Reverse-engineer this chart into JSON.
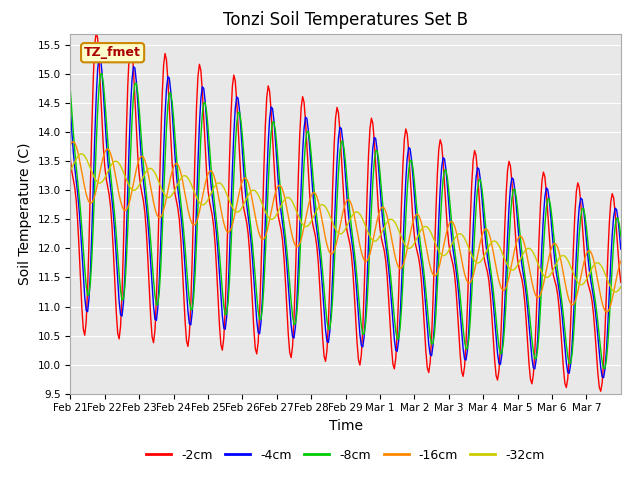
{
  "title": "Tonzi Soil Temperatures Set B",
  "xlabel": "Time",
  "ylabel": "Soil Temperature (C)",
  "ylim": [
    9.5,
    15.7
  ],
  "xlim": [
    0,
    384
  ],
  "yticks": [
    9.5,
    10.0,
    10.5,
    11.0,
    11.5,
    12.0,
    12.5,
    13.0,
    13.5,
    14.0,
    14.5,
    15.0,
    15.5
  ],
  "xtick_labels": [
    "Feb 21",
    "Feb 22",
    "Feb 23",
    "Feb 24",
    "Feb 25",
    "Feb 26",
    "Feb 27",
    "Feb 28",
    "Feb 29",
    "Mar 1",
    "Mar 2",
    "Mar 3",
    "Mar 4",
    "Mar 5",
    "Mar 6",
    "Mar 7"
  ],
  "xtick_positions": [
    0,
    24,
    48,
    72,
    96,
    120,
    144,
    168,
    192,
    216,
    240,
    264,
    288,
    312,
    336,
    360
  ],
  "colors": {
    "-2cm": "#ff0000",
    "-4cm": "#0000ff",
    "-8cm": "#00cc00",
    "-16cm": "#ff8800",
    "-32cm": "#cccc00"
  },
  "legend_label": "TZ_fmet",
  "legend_bg": "#ffffcc",
  "legend_border": "#cc0000",
  "plot_bg": "#e8e8e8",
  "fig_bg": "#ffffff",
  "title_fontsize": 12,
  "axis_label_fontsize": 10
}
